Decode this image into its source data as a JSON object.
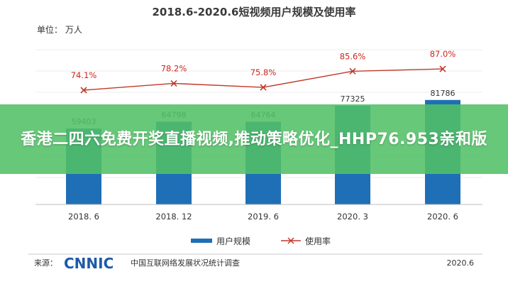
{
  "chart_data": {
    "type": "bar",
    "title": "2018.6-2020.6短视频用户规模及使用率",
    "unit_label": "单位：  万人",
    "categories": [
      "2018. 6",
      "2018. 12",
      "2019. 6",
      "2020. 3",
      "2020. 6"
    ],
    "series": [
      {
        "name": "用户规模",
        "type": "bar",
        "values": [
          59403,
          64798,
          64764,
          77325,
          81786
        ],
        "labels": [
          "59403",
          "64798",
          "64764",
          "77325",
          "81786"
        ]
      },
      {
        "name": "使用率",
        "type": "line",
        "values": [
          74.1,
          78.2,
          75.8,
          85.6,
          87.0
        ],
        "labels": [
          "74.1%",
          "78.2%",
          "75.8%",
          "85.6%",
          "87.0%"
        ]
      }
    ],
    "colors": {
      "bar": "#1f6fb6",
      "line": "#c0392b",
      "rate_text": "#d0231c"
    },
    "legend_position": "bottom",
    "grid": true
  },
  "footer": {
    "source_label": "来源：",
    "logo": "CNNIC",
    "org": "中国互联网络发展状况统计调查",
    "date": "2020.6"
  },
  "overlay": {
    "headline": "香港二四六免费开奖直播视频,推动策略优化_HHP76.953亲和版"
  }
}
